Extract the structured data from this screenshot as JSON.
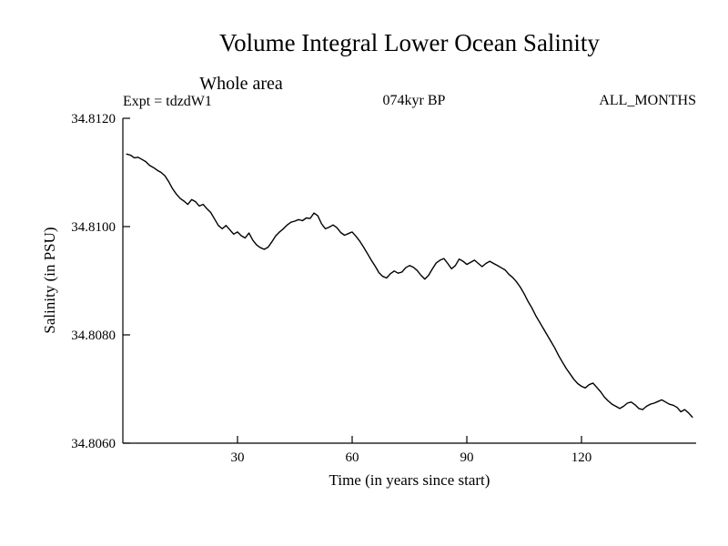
{
  "colors": {
    "background": "#ffffff",
    "line": "#000000",
    "text": "#000000"
  },
  "chart_data": {
    "type": "line",
    "title": "Volume Integral Lower Ocean Salinity",
    "subtitle": "Whole area",
    "experiment": "Expt = tdzdW1",
    "period": "074kyr BP",
    "months": "ALL_MONTHS",
    "xlabel": "Time (in years since start)",
    "ylabel": "Salinity (in PSU)",
    "xlim": [
      0,
      150
    ],
    "ylim": [
      34.806,
      34.812
    ],
    "x_ticks": [
      30,
      60,
      90,
      120
    ],
    "x_tick_labels": [
      "30",
      "60",
      "90",
      "120"
    ],
    "y_ticks": [
      34.806,
      34.808,
      34.81,
      34.812
    ],
    "y_tick_labels": [
      "34.8060",
      "34.8080",
      "34.8100",
      "34.8120"
    ],
    "grid": false,
    "legend": "none",
    "x": [
      1,
      2,
      3,
      4,
      5,
      6,
      7,
      8,
      9,
      10,
      11,
      12,
      13,
      14,
      15,
      16,
      17,
      18,
      19,
      20,
      21,
      22,
      23,
      24,
      25,
      26,
      27,
      28,
      29,
      30,
      31,
      32,
      33,
      34,
      35,
      36,
      37,
      38,
      39,
      40,
      41,
      42,
      43,
      44,
      45,
      46,
      47,
      48,
      49,
      50,
      51,
      52,
      53,
      54,
      55,
      56,
      57,
      58,
      59,
      60,
      61,
      62,
      63,
      64,
      65,
      66,
      67,
      68,
      69,
      70,
      71,
      72,
      73,
      74,
      75,
      76,
      77,
      78,
      79,
      80,
      81,
      82,
      83,
      84,
      85,
      86,
      87,
      88,
      89,
      90,
      91,
      92,
      93,
      94,
      95,
      96,
      97,
      98,
      99,
      100,
      101,
      102,
      103,
      104,
      105,
      106,
      107,
      108,
      109,
      110,
      111,
      112,
      113,
      114,
      115,
      116,
      117,
      118,
      119,
      120,
      121,
      122,
      123,
      124,
      125,
      126,
      127,
      128,
      129,
      130,
      131,
      132,
      133,
      134,
      135,
      136,
      137,
      138,
      139,
      140,
      141,
      142,
      143,
      144,
      145,
      146,
      147,
      148,
      149
    ],
    "y": [
      34.81134,
      34.81132,
      34.81127,
      34.81128,
      34.81124,
      34.8112,
      34.81113,
      34.81109,
      34.81104,
      34.811,
      34.81094,
      34.81083,
      34.8107,
      34.8106,
      34.81052,
      34.81047,
      34.81041,
      34.8105,
      34.81046,
      34.81038,
      34.81041,
      34.81033,
      34.81026,
      34.81014,
      34.81002,
      34.80996,
      34.81002,
      34.80994,
      34.80986,
      34.8099,
      34.80983,
      34.80979,
      34.80988,
      34.80975,
      34.80966,
      34.80961,
      34.80958,
      34.80962,
      34.80972,
      34.80983,
      34.8099,
      34.80996,
      34.81003,
      34.81008,
      34.8101,
      34.81013,
      34.81011,
      34.81016,
      34.81015,
      34.81025,
      34.8102,
      34.81005,
      34.80996,
      34.80999,
      34.81003,
      34.80998,
      34.80989,
      34.80984,
      34.80987,
      34.8099,
      34.80982,
      34.80973,
      34.80962,
      34.8095,
      34.80938,
      34.80927,
      34.80915,
      34.80908,
      34.80905,
      34.80913,
      34.80918,
      34.80914,
      34.80916,
      34.80924,
      34.80928,
      34.80925,
      34.80919,
      34.8091,
      34.80903,
      34.8091,
      34.80922,
      34.80933,
      34.80938,
      34.80941,
      34.80932,
      34.80922,
      34.80928,
      34.8094,
      34.80936,
      34.8093,
      34.80934,
      34.80938,
      34.80932,
      34.80926,
      34.80932,
      34.80936,
      34.80932,
      34.80928,
      34.80924,
      34.8092,
      34.80912,
      34.80906,
      34.80898,
      34.80888,
      34.80876,
      34.80862,
      34.8085,
      34.80836,
      34.80824,
      34.80812,
      34.808,
      34.80788,
      34.80776,
      34.80762,
      34.8075,
      34.80738,
      34.80728,
      34.80718,
      34.8071,
      34.80705,
      34.80702,
      34.80708,
      34.80711,
      34.80703,
      34.80695,
      34.80685,
      34.80678,
      34.80672,
      34.80668,
      34.80664,
      34.80668,
      34.80674,
      34.80676,
      34.80671,
      34.80664,
      34.80662,
      34.80668,
      34.80672,
      34.80674,
      34.80677,
      34.8068,
      34.80676,
      34.80672,
      34.8067,
      34.80666,
      34.80658,
      34.80662,
      34.80656,
      34.80648
    ]
  }
}
